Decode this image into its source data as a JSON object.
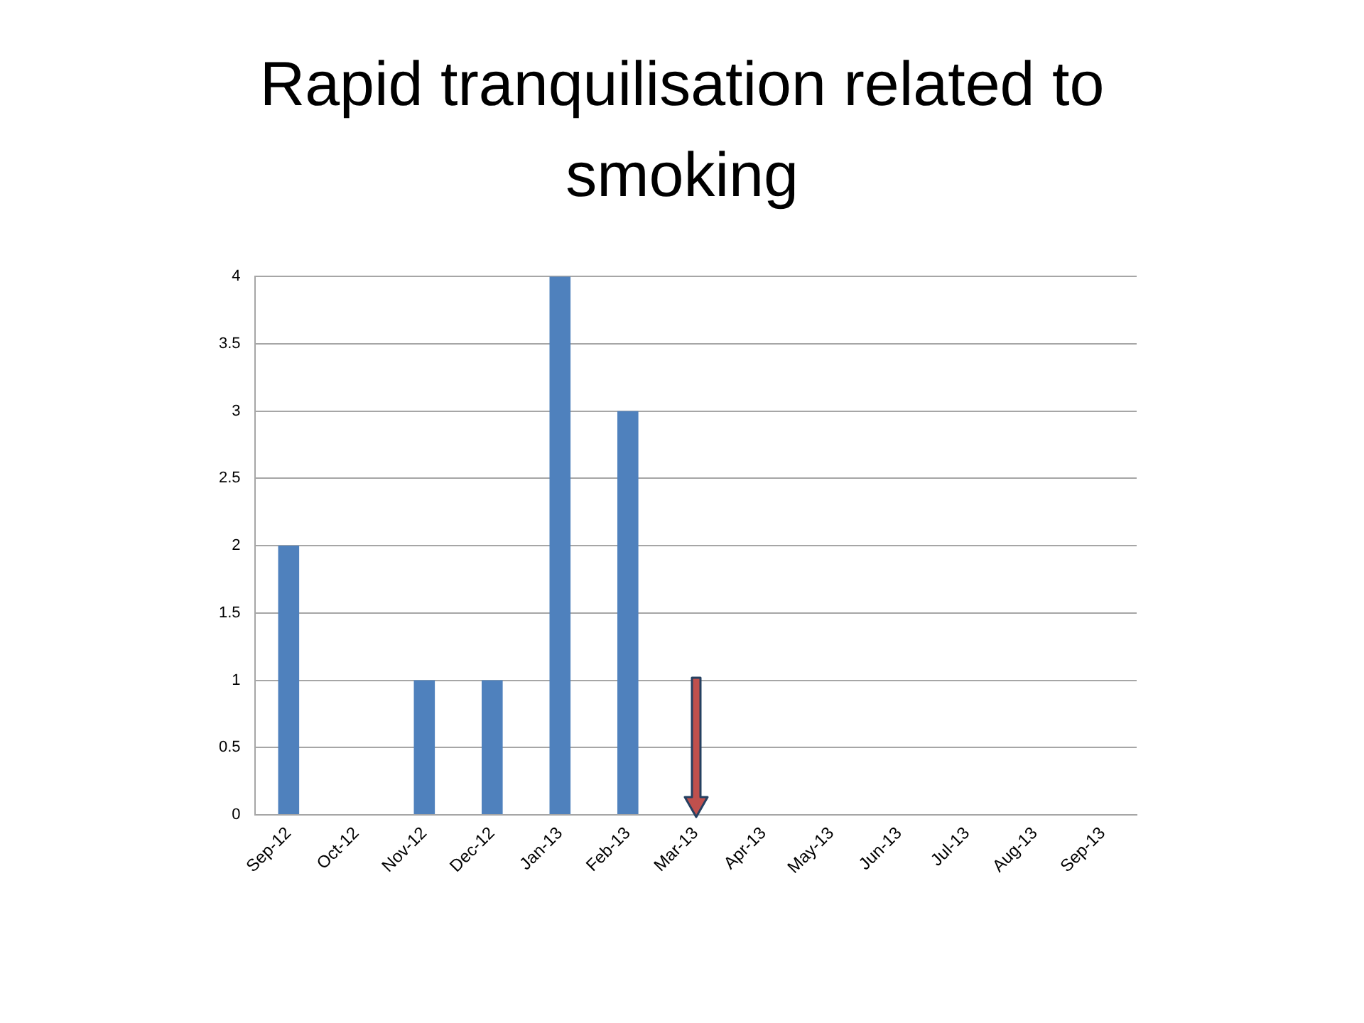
{
  "chart_data": {
    "type": "bar",
    "title": "Rapid tranquilisation related to smoking",
    "categories": [
      "Sep-12",
      "Oct-12",
      "Nov-12",
      "Dec-12",
      "Jan-13",
      "Feb-13",
      "Mar-13",
      "Apr-13",
      "May-13",
      "Jun-13",
      "Jul-13",
      "Aug-13",
      "Sep-13"
    ],
    "values": [
      2,
      0,
      1,
      1,
      4,
      3,
      0,
      0,
      0,
      0,
      0,
      0,
      0
    ],
    "color": "#4f81bd",
    "ylim": [
      0,
      4
    ],
    "yticks": [
      0,
      0.5,
      1,
      1.5,
      2,
      2.5,
      3,
      3.5,
      4
    ],
    "grid": "y"
  }
}
